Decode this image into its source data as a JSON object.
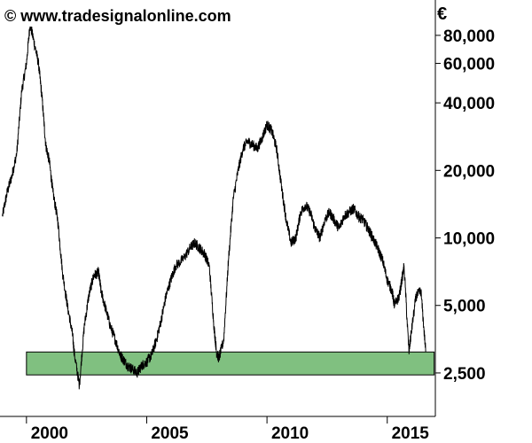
{
  "watermark": "© www.tradesignalonline.com",
  "chart_data": {
    "type": "line",
    "title": "",
    "xlabel": "",
    "ylabel": "",
    "y_unit": "€",
    "y_scale": "log",
    "ylim": [
      1600,
      115000
    ],
    "xlim": [
      1998.9,
      2017.0
    ],
    "x_ticks": [
      2000,
      2005,
      2010,
      2015
    ],
    "x_tick_labels": [
      "2000",
      "2005",
      "2010",
      "2015"
    ],
    "y_ticks": [
      2500,
      5000,
      10000,
      20000,
      40000,
      60000,
      80000
    ],
    "y_tick_labels": [
      "2,500",
      "5,000",
      "10,000",
      "20,000",
      "40,000",
      "60,000",
      "80,000"
    ],
    "grid": false,
    "legend": "none",
    "line_color": "#000000",
    "support_zone": {
      "y_low": 2450,
      "y_high": 3100,
      "x_start": 2000.0,
      "x_end": 2016.95,
      "color": "#80c080"
    },
    "series": [
      {
        "x": [
          1999.0,
          1999.2,
          1999.4,
          1999.6,
          1999.8,
          2000.0,
          2000.15,
          2000.3,
          2000.5,
          2000.65,
          2000.8,
          2000.95,
          2001.1,
          2001.3,
          2001.5,
          2001.7,
          2001.9,
          2002.0,
          2002.2,
          2002.4,
          2002.6,
          2002.8,
          2003.0,
          2003.1,
          2003.3,
          2003.5,
          2003.7,
          2003.9,
          2004.0,
          2004.2,
          2004.4,
          2004.6,
          2004.8,
          2005.0,
          2005.2,
          2005.4,
          2005.6,
          2005.8,
          2006.0,
          2006.2,
          2006.5,
          2006.8,
          2007.0,
          2007.2,
          2007.4,
          2007.6,
          2007.8,
          2007.9,
          2008.0,
          2008.2,
          2008.4,
          2008.6,
          2008.8,
          2009.0,
          2009.2,
          2009.4,
          2009.6,
          2009.8,
          2010.0,
          2010.2,
          2010.4,
          2010.6,
          2010.8,
          2011.0,
          2011.2,
          2011.4,
          2011.6,
          2011.8,
          2012.0,
          2012.2,
          2012.4,
          2012.6,
          2012.8,
          2013.0,
          2013.2,
          2013.4,
          2013.6,
          2013.8,
          2014.0,
          2014.2,
          2014.4,
          2014.6,
          2014.8,
          2015.0,
          2015.2,
          2015.3,
          2015.5,
          2015.7,
          2015.9,
          2016.0,
          2016.2,
          2016.4,
          2016.6
        ],
        "y": [
          12500,
          16000,
          19000,
          24000,
          45000,
          60000,
          90000,
          76000,
          60000,
          42000,
          26000,
          22000,
          16000,
          12000,
          7000,
          5000,
          3800,
          3000,
          2200,
          4000,
          5600,
          6800,
          7000,
          5800,
          4800,
          4000,
          3500,
          3000,
          2900,
          2700,
          2600,
          2500,
          2700,
          2800,
          3000,
          3500,
          4300,
          5500,
          6500,
          7500,
          8000,
          9000,
          9500,
          9000,
          8500,
          7500,
          4000,
          3100,
          2900,
          3500,
          8000,
          15000,
          20000,
          25000,
          27000,
          26000,
          25000,
          28000,
          32000,
          30000,
          25000,
          17000,
          12000,
          9500,
          10000,
          13000,
          14000,
          13000,
          11000,
          10000,
          12000,
          13000,
          12000,
          11000,
          12500,
          13000,
          13500,
          12500,
          12000,
          11000,
          10000,
          9000,
          8000,
          6500,
          5800,
          5000,
          5500,
          7500,
          3100,
          3800,
          5500,
          5800,
          3100
        ]
      }
    ]
  }
}
